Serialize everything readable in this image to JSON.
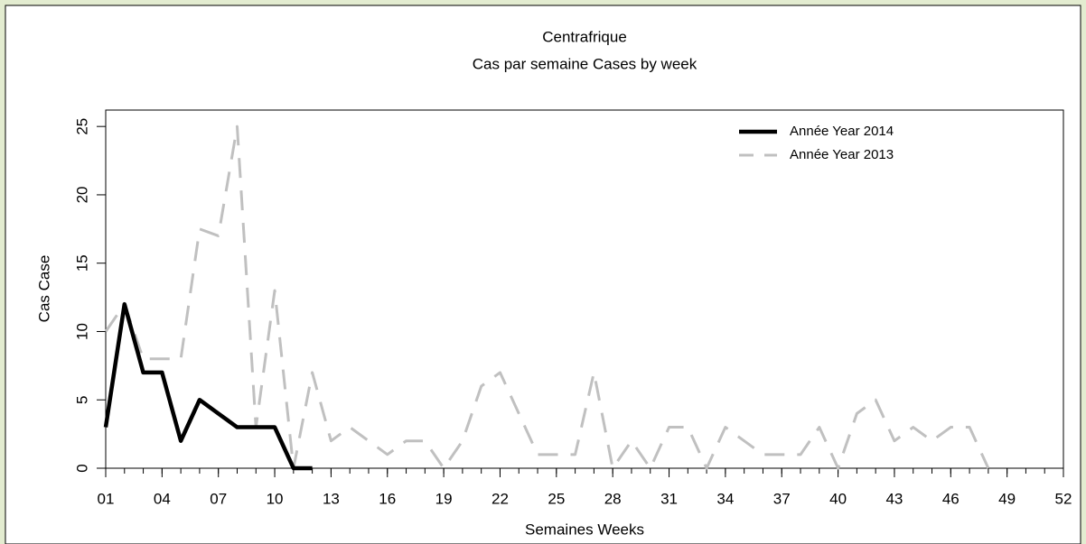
{
  "chart_data": {
    "type": "line",
    "title": "Centrafrique",
    "subtitle": "Cas par semaine Cases by week",
    "x_label": "Semaines Weeks",
    "y_label": "Cas Case",
    "x": [
      1,
      2,
      3,
      4,
      5,
      6,
      7,
      8,
      9,
      10,
      11,
      12,
      13,
      14,
      15,
      16,
      17,
      18,
      19,
      20,
      21,
      22,
      23,
      24,
      25,
      26,
      27,
      28,
      29,
      30,
      31,
      32,
      33,
      34,
      35,
      36,
      37,
      38,
      39,
      40,
      41,
      42,
      43,
      44,
      45,
      46,
      47,
      48,
      49,
      50,
      51,
      52
    ],
    "series": [
      {
        "name": "Année Year 2014",
        "color": "#000000",
        "dashed": false,
        "values": [
          3,
          12,
          7,
          7,
          2,
          5,
          4,
          3,
          3,
          3,
          0,
          0,
          null,
          null,
          null,
          null,
          null,
          null,
          null,
          null,
          null,
          null,
          null,
          null,
          null,
          null,
          null,
          null,
          null,
          null,
          null,
          null,
          null,
          null,
          null,
          null,
          null,
          null,
          null,
          null,
          null,
          null,
          null,
          null,
          null,
          null,
          null,
          null,
          null,
          null,
          null,
          null
        ]
      },
      {
        "name": "Année Year 2013",
        "color": "#c0c0c0",
        "dashed": true,
        "values": [
          10,
          12,
          8,
          8,
          8,
          17.5,
          17,
          25,
          3,
          13,
          0,
          7,
          2,
          3,
          2,
          1,
          2,
          2,
          0,
          2,
          6,
          7,
          4,
          1,
          1,
          1,
          7,
          0,
          2,
          0,
          3,
          3,
          0,
          3,
          2,
          1,
          1,
          1,
          3,
          0,
          4,
          5,
          2,
          3,
          2,
          3,
          3,
          0,
          null,
          null,
          null,
          null
        ]
      }
    ],
    "xlim": [
      1,
      52
    ],
    "ylim": [
      0,
      26.2
    ],
    "xticks": [
      {
        "value": 1,
        "label": "01"
      },
      {
        "value": 4,
        "label": "04"
      },
      {
        "value": 7,
        "label": "07"
      },
      10,
      13,
      16,
      19,
      22,
      25,
      28,
      31,
      34,
      37,
      40,
      43,
      46,
      49,
      52
    ],
    "yticks": [
      0,
      5,
      10,
      15,
      20,
      25
    ],
    "legend": "top-right"
  }
}
